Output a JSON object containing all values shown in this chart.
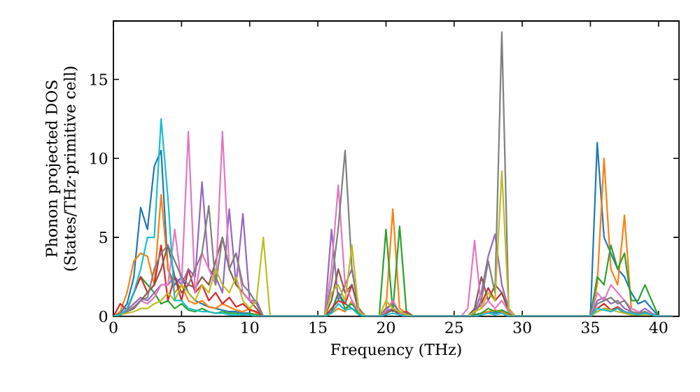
{
  "chart_data": {
    "type": "line",
    "xlabel": "Frequency (THz)",
    "ylabel": [
      "Phonon projected DOS",
      "(States/THz·primitive cell)"
    ],
    "x": [
      0,
      0.5,
      1,
      1.5,
      2,
      2.5,
      3,
      3.5,
      4,
      4.5,
      5,
      5.5,
      6,
      6.5,
      7,
      7.5,
      8,
      8.5,
      9,
      9.5,
      10,
      10.5,
      11,
      11.5,
      15.5,
      16,
      16.5,
      17,
      17.5,
      18,
      18.5,
      19.5,
      20,
      20.5,
      21,
      21.5,
      22,
      25.5,
      26,
      26.5,
      27,
      27.5,
      28,
      28.5,
      29,
      29.5,
      35,
      35.5,
      36,
      36.5,
      37,
      37.5,
      38,
      38.5,
      39,
      39.5,
      40,
      41
    ],
    "series": [
      {
        "color": "#1f77b4",
        "values": [
          0,
          0.2,
          0.8,
          2.5,
          6.9,
          5.5,
          9.5,
          10.5,
          3,
          2,
          2.5,
          1.5,
          1,
          0.8,
          0.6,
          0.5,
          0.4,
          0.3,
          0.3,
          0.2,
          0.2,
          0.1,
          0,
          0,
          0,
          0.3,
          1.5,
          0.8,
          0.5,
          0.2,
          0,
          0,
          0.3,
          0.5,
          0.2,
          0.1,
          0,
          0,
          0,
          0.1,
          0.2,
          0.3,
          0.2,
          0.3,
          0.1,
          0,
          0,
          11,
          5,
          4,
          3,
          2.5,
          1.5,
          0.8,
          1,
          0.5,
          0,
          0
        ]
      },
      {
        "color": "#ff7f0e",
        "values": [
          0,
          0.3,
          1.5,
          3.5,
          4,
          3.8,
          2,
          7.7,
          3,
          1.5,
          2,
          1,
          0.8,
          1,
          0.6,
          0.5,
          0.8,
          0.6,
          0.4,
          0.3,
          0.5,
          0.2,
          0,
          0,
          0,
          0.2,
          0.5,
          0.3,
          1,
          0.3,
          0,
          0,
          0.5,
          6.8,
          0.5,
          0.2,
          0,
          0,
          0,
          0.1,
          0.2,
          0.3,
          0.4,
          0.3,
          0.1,
          0,
          0,
          2,
          10,
          3,
          2,
          6.4,
          0.5,
          0.3,
          0.2,
          null,
          null,
          null
        ]
      },
      {
        "color": "#2ca02c",
        "values": [
          0,
          0.1,
          0.5,
          1.5,
          2.5,
          2,
          1.5,
          0.8,
          1,
          0.5,
          0.8,
          0.4,
          0.3,
          0.5,
          0.3,
          0.2,
          0.3,
          0.2,
          0.2,
          0.1,
          0.2,
          0.1,
          0,
          0,
          0,
          0.2,
          1.5,
          0.5,
          0.8,
          0.2,
          0,
          0,
          5.5,
          0.3,
          5.7,
          0.3,
          0,
          0,
          0,
          0.1,
          0.2,
          0.5,
          0.3,
          0.4,
          0.2,
          0,
          0,
          2.5,
          2,
          4.5,
          3,
          4,
          1,
          1,
          2,
          1,
          0,
          0
        ]
      },
      {
        "color": "#d62728",
        "values": [
          0,
          0.8,
          0.4,
          1.5,
          2.5,
          1.5,
          2,
          4.5,
          1,
          2.5,
          1,
          3,
          1.5,
          2,
          1,
          1.5,
          0.8,
          1.2,
          0.6,
          0.8,
          0.4,
          0.3,
          0,
          0,
          0,
          0.5,
          1,
          0.8,
          2,
          0.5,
          0,
          0,
          0.3,
          1,
          0.2,
          0.3,
          0,
          0,
          0,
          0.3,
          0.8,
          1.8,
          1,
          1.5,
          0.4,
          0,
          0,
          0.5,
          0.8,
          0.4,
          0.6,
          0.3,
          0.2,
          0.1,
          0.3,
          0.1,
          null,
          null
        ]
      },
      {
        "color": "#9467bd",
        "values": [
          0,
          0.1,
          0.4,
          0.8,
          1.2,
          1,
          1.5,
          2,
          2,
          2.5,
          2,
          3,
          2.5,
          8.5,
          3,
          2.5,
          1.5,
          6.8,
          2,
          6.5,
          1,
          1,
          0,
          0,
          0,
          5.5,
          1,
          2,
          3,
          0.5,
          0,
          0,
          0.2,
          0.5,
          0.3,
          0.1,
          0,
          0,
          0,
          0.3,
          1.5,
          3.8,
          5.2,
          2,
          0.5,
          0,
          0,
          1,
          1.2,
          0.8,
          1,
          0.5,
          0.3,
          0.2,
          0.5,
          0.2,
          0,
          0
        ]
      },
      {
        "color": "#8c564b",
        "values": [
          0,
          0.1,
          0.3,
          0.5,
          1,
          1.5,
          2,
          3,
          4.5,
          2.5,
          1.5,
          2,
          1.8,
          2.5,
          2,
          3.5,
          5,
          3,
          2,
          1.5,
          1,
          0.5,
          0,
          0,
          0,
          1,
          3,
          1.5,
          2,
          0.3,
          0,
          0,
          0.2,
          0.4,
          0.1,
          0.1,
          0,
          0,
          0,
          0.5,
          2.5,
          1,
          2,
          1.5,
          0.3,
          0,
          0,
          0.3,
          0.5,
          0.4,
          0.5,
          0.2,
          0.1,
          0.1,
          0.2,
          0.1,
          0,
          0
        ]
      },
      {
        "color": "#e377c2",
        "values": [
          0,
          0.1,
          0.3,
          0.6,
          1,
          0.8,
          1.2,
          2,
          2,
          5.5,
          2,
          11.7,
          1.5,
          4,
          3,
          2,
          11.7,
          3,
          4,
          1.5,
          1,
          0.8,
          0,
          0,
          0,
          3,
          8.3,
          2,
          1,
          0.3,
          0,
          0,
          0.3,
          1,
          0.2,
          0.1,
          0,
          0,
          0.5,
          4.8,
          0.5,
          1,
          0.5,
          1,
          0.3,
          0,
          0,
          1.5,
          1,
          2,
          1.5,
          1,
          0.5,
          0.3,
          0.2,
          0.1,
          0,
          0
        ]
      },
      {
        "color": "#7f7f7f",
        "values": [
          0,
          0.2,
          0.3,
          0.6,
          1,
          1.2,
          3,
          4,
          4.5,
          3.5,
          2.5,
          2,
          3,
          4,
          7,
          2,
          5,
          3,
          4,
          2,
          1.5,
          0.8,
          0,
          0,
          0,
          2,
          5.6,
          10.5,
          3,
          0.5,
          0,
          0,
          0.5,
          0.8,
          0.3,
          0.2,
          0,
          0,
          0,
          0.2,
          1,
          3.5,
          1.5,
          18,
          0.5,
          0,
          0,
          0.8,
          1,
          1.2,
          0.8,
          1,
          0.3,
          0.2,
          0.3,
          0.1,
          0,
          0
        ]
      },
      {
        "color": "#bcbd22",
        "values": [
          0,
          0.1,
          0.2,
          0.3,
          0.5,
          0.5,
          0.8,
          1,
          1.5,
          1,
          2,
          1.5,
          1,
          2,
          1.5,
          3,
          2,
          1.5,
          2.5,
          1,
          0.5,
          1,
          5,
          0,
          0,
          1.5,
          2,
          1,
          4.5,
          0.3,
          0,
          0,
          1,
          0.5,
          0.3,
          0.1,
          0,
          0,
          0,
          0.3,
          0.5,
          1.5,
          1,
          9.2,
          0.5,
          0,
          0,
          0.3,
          0.5,
          0.4,
          0.3,
          0.2,
          0.1,
          0.1,
          0.1,
          0.1,
          0,
          0
        ]
      },
      {
        "color": "#17becf",
        "values": [
          0,
          0.1,
          0.5,
          1.5,
          3,
          5,
          5,
          12.5,
          7.5,
          1,
          1,
          0.5,
          0.4,
          0.3,
          0.3,
          0.2,
          0.2,
          0.1,
          0.1,
          0.1,
          0.1,
          0,
          0,
          0,
          0,
          0.2,
          0.8,
          0.4,
          0.5,
          0.1,
          0,
          0,
          0.1,
          0.2,
          0.1,
          0,
          0,
          0,
          0,
          0,
          0.1,
          0.2,
          0.1,
          0.2,
          0,
          0,
          0,
          0.5,
          0.4,
          0.3,
          0.5,
          0.3,
          0.2,
          0.1,
          0.2,
          0.1,
          0,
          0
        ]
      }
    ],
    "xlim": [
      0,
      41.5
    ],
    "ylim": [
      0,
      18.7
    ],
    "xticks": [
      0,
      5,
      10,
      15,
      20,
      25,
      30,
      35,
      40
    ],
    "yticks": [
      0,
      5,
      10,
      15
    ],
    "grid": false,
    "marker": "none",
    "line_style": "solid"
  }
}
